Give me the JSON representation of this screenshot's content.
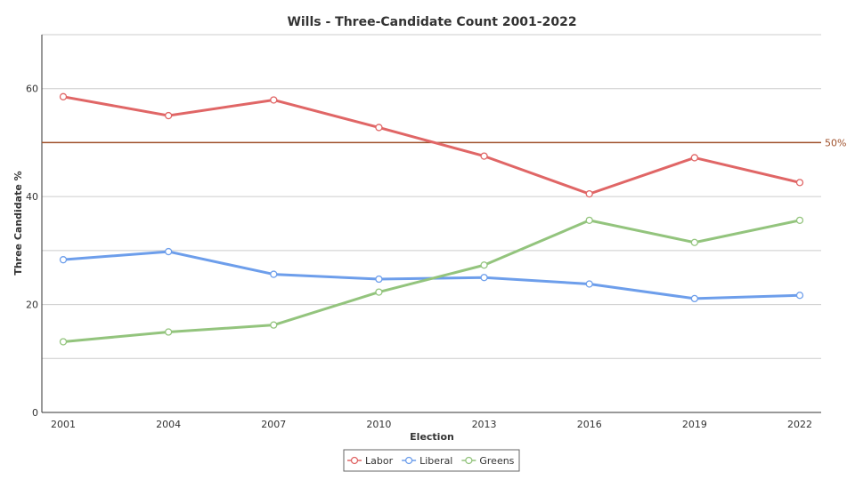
{
  "chart_data": {
    "type": "line",
    "title": "Wills - Three-Candidate Count 2001-2022",
    "xlabel": "Election",
    "ylabel": "Three Candidate %",
    "categories": [
      "2001",
      "2004",
      "2007",
      "2010",
      "2013",
      "2016",
      "2019",
      "2022"
    ],
    "ylim": [
      0,
      70
    ],
    "yticks": [
      0,
      20,
      40,
      60
    ],
    "grid": true,
    "series": [
      {
        "name": "Labor",
        "color": "#e06666",
        "values": [
          58.5,
          55.0,
          57.9,
          52.8,
          47.5,
          40.5,
          47.2,
          42.6
        ]
      },
      {
        "name": "Liberal",
        "color": "#6d9eeb",
        "values": [
          28.3,
          29.8,
          25.6,
          24.7,
          25.0,
          23.8,
          21.1,
          21.7
        ]
      },
      {
        "name": "Greens",
        "color": "#93c47d",
        "values": [
          13.1,
          14.9,
          16.2,
          22.3,
          27.3,
          35.6,
          31.5,
          35.6
        ]
      }
    ],
    "reference_line": {
      "value": 50,
      "label": "50%",
      "color": "#a0522d"
    },
    "legend_position": "bottom-center"
  }
}
